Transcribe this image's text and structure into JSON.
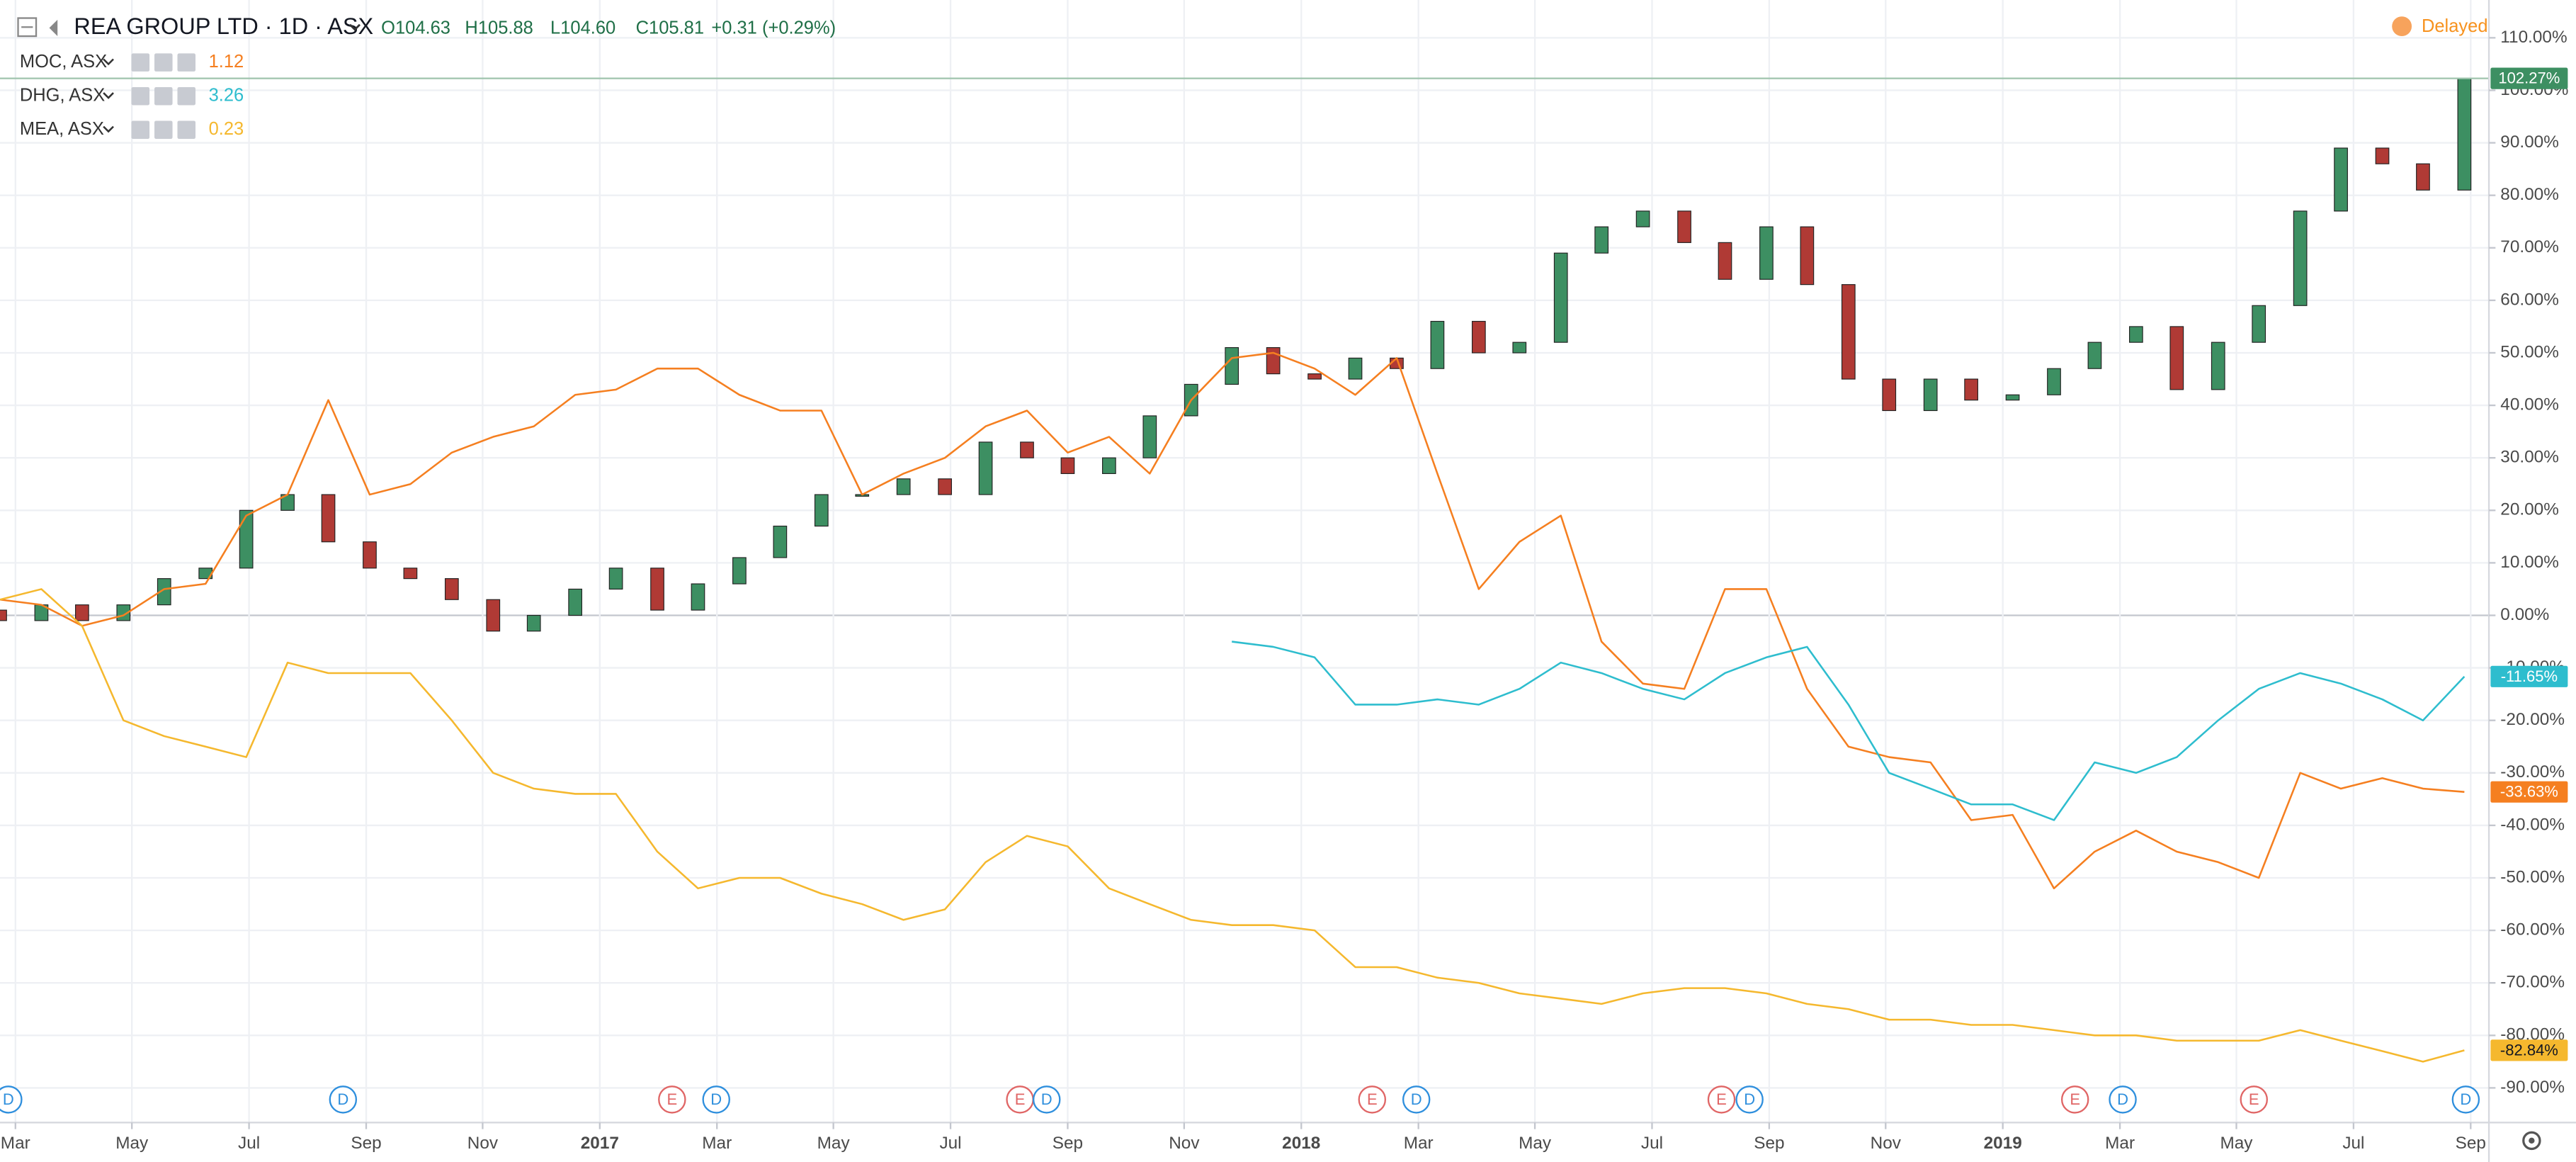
{
  "chart_data": {
    "type": "candlestick",
    "title": "REA GROUP LTD · 1D · ASX",
    "ohlc": [
      "O104.63",
      "H105.88",
      "L104.60",
      "C105.81"
    ],
    "change": "+0.31 (+0.29%)",
    "status": "Delayed",
    "grid": true,
    "xlim": [
      2016.145,
      2019.693
    ],
    "xticks": [
      {
        "value": 2016.167,
        "label": "Mar"
      },
      {
        "value": 2016.333,
        "label": "May"
      },
      {
        "value": 2016.5,
        "label": "Jul"
      },
      {
        "value": 2016.667,
        "label": "Sep"
      },
      {
        "value": 2016.833,
        "label": "Nov"
      },
      {
        "value": 2017.0,
        "label": "2017"
      },
      {
        "value": 2017.167,
        "label": "Mar"
      },
      {
        "value": 2017.333,
        "label": "May"
      },
      {
        "value": 2017.5,
        "label": "Jul"
      },
      {
        "value": 2017.667,
        "label": "Sep"
      },
      {
        "value": 2017.833,
        "label": "Nov"
      },
      {
        "value": 2018.0,
        "label": "2018"
      },
      {
        "value": 2018.167,
        "label": "Mar"
      },
      {
        "value": 2018.333,
        "label": "May"
      },
      {
        "value": 2018.5,
        "label": "Jul"
      },
      {
        "value": 2018.667,
        "label": "Sep"
      },
      {
        "value": 2018.833,
        "label": "Nov"
      },
      {
        "value": 2019.0,
        "label": "2019"
      },
      {
        "value": 2019.167,
        "label": "Mar"
      },
      {
        "value": 2019.333,
        "label": "May"
      },
      {
        "value": 2019.5,
        "label": "Jul"
      },
      {
        "value": 2019.667,
        "label": "Sep"
      }
    ],
    "ylim": [
      -96.6,
      117.2
    ],
    "yticks": [
      {
        "value": 110,
        "label": "110.00%"
      },
      {
        "value": 100,
        "label": "100.00%"
      },
      {
        "value": 90,
        "label": "90.00%"
      },
      {
        "value": 80,
        "label": "80.00%"
      },
      {
        "value": 70,
        "label": "70.00%"
      },
      {
        "value": 60,
        "label": "60.00%"
      },
      {
        "value": 50,
        "label": "50.00%"
      },
      {
        "value": 40,
        "label": "40.00%"
      },
      {
        "value": 30,
        "label": "30.00%"
      },
      {
        "value": 20,
        "label": "20.00%"
      },
      {
        "value": 10,
        "label": "10.00%"
      },
      {
        "value": 0,
        "label": "0.00%"
      },
      {
        "value": -10,
        "label": "-10.00%"
      },
      {
        "value": -20,
        "label": "-20.00%"
      },
      {
        "value": -30,
        "label": "-30.00%"
      },
      {
        "value": -40,
        "label": "-40.00%"
      },
      {
        "value": -50,
        "label": "-50.00%"
      },
      {
        "value": -60,
        "label": "-60.00%"
      },
      {
        "value": -70,
        "label": "-70.00%"
      },
      {
        "value": -80,
        "label": "-80.00%"
      },
      {
        "value": -90,
        "label": "-90.00%"
      }
    ],
    "x": [
      2016.145,
      2016.204,
      2016.262,
      2016.321,
      2016.379,
      2016.438,
      2016.496,
      2016.555,
      2016.613,
      2016.672,
      2016.73,
      2016.789,
      2016.848,
      2016.906,
      2016.965,
      2017.023,
      2017.082,
      2017.14,
      2017.199,
      2017.257,
      2017.316,
      2017.374,
      2017.433,
      2017.492,
      2017.55,
      2017.609,
      2017.667,
      2017.726,
      2017.784,
      2017.843,
      2017.901,
      2017.96,
      2018.019,
      2018.077,
      2018.136,
      2018.194,
      2018.253,
      2018.311,
      2018.37,
      2018.428,
      2018.487,
      2018.546,
      2018.604,
      2018.663,
      2018.721,
      2018.78,
      2018.838,
      2018.897,
      2018.955,
      2019.014,
      2019.073,
      2019.131,
      2019.19,
      2019.248,
      2019.307,
      2019.365,
      2019.424,
      2019.482,
      2019.541,
      2019.599,
      2019.658
    ],
    "series": [
      {
        "type": "candlestick",
        "up_color": "#3d8f62",
        "down_color": "#b03a35",
        "open": [
          1,
          -1,
          2,
          -1,
          2,
          7,
          9,
          20,
          23,
          14,
          9,
          7,
          3,
          -3,
          0,
          5,
          9,
          1,
          6,
          11,
          17,
          23,
          23,
          26,
          23,
          33,
          30,
          27,
          30,
          38,
          44,
          51,
          46,
          45,
          49,
          47,
          56,
          50,
          52,
          69,
          74,
          77,
          71,
          64,
          74,
          63,
          45,
          39,
          45,
          41,
          42,
          47,
          52,
          55,
          43,
          52,
          59,
          77,
          89,
          86,
          81
        ],
        "values": [
          -1,
          2,
          -1,
          2,
          7,
          9,
          20,
          23,
          14,
          9,
          7,
          3,
          -3,
          0,
          5,
          9,
          1,
          6,
          11,
          17,
          23,
          23,
          26,
          23,
          33,
          30,
          27,
          30,
          38,
          44,
          51,
          46,
          45,
          49,
          47,
          56,
          50,
          52,
          69,
          74,
          77,
          71,
          64,
          74,
          63,
          45,
          39,
          45,
          41,
          42,
          47,
          52,
          55,
          43,
          52,
          59,
          77,
          89,
          86,
          81,
          102.27
        ],
        "last_value_label": {
          "value": 102.27,
          "label": "102.27%"
        }
      },
      {
        "type": "line",
        "name": "MOC, ASX",
        "price": 1.12,
        "color": "#f57f20",
        "values": [
          3,
          2,
          -2,
          0,
          5,
          6,
          19,
          23,
          41,
          23,
          25,
          31,
          34,
          36,
          42,
          43,
          47,
          47,
          42,
          39,
          39,
          23,
          27,
          30,
          36,
          39,
          31,
          34,
          27,
          41,
          49,
          50,
          47,
          42,
          49,
          27,
          5,
          14,
          19,
          -5,
          -13,
          -14,
          5,
          5,
          -14,
          -25,
          -27,
          -28,
          -39,
          -38,
          -52,
          -45,
          -41,
          -45,
          -47,
          -50,
          -30,
          -33,
          -31,
          -33,
          -33.63
        ],
        "last_value_label": {
          "value": -33.63,
          "label": "-33.63%"
        }
      },
      {
        "type": "line",
        "name": "DHG, ASX",
        "price": 3.26,
        "color": "#2ebdce",
        "values": [
          null,
          null,
          null,
          null,
          null,
          null,
          null,
          null,
          null,
          null,
          null,
          null,
          null,
          null,
          null,
          null,
          null,
          null,
          null,
          null,
          null,
          null,
          null,
          null,
          null,
          null,
          null,
          null,
          null,
          null,
          -5,
          -6,
          -8,
          -17,
          -17,
          -16,
          -17,
          -14,
          -9,
          -11,
          -14,
          -16,
          -11,
          -8,
          -6,
          -17,
          -30,
          -33,
          -36,
          -36,
          -39,
          -28,
          -30,
          -27,
          -20,
          -14,
          -11,
          -13,
          -16,
          -20,
          -11.65
        ],
        "last_value_label": {
          "value": -11.65,
          "label": "-11.65%"
        }
      },
      {
        "type": "line",
        "name": "MEA, ASX",
        "price": 0.23,
        "color": "#f5b82e",
        "values": [
          3,
          5,
          -2,
          -20,
          -23,
          -25,
          -27,
          -9,
          -11,
          -11,
          -11,
          -20,
          -30,
          -33,
          -34,
          -34,
          -45,
          -52,
          -50,
          -50,
          -53,
          -55,
          -58,
          -56,
          -47,
          -42,
          -44,
          -52,
          -55,
          -58,
          -59,
          -59,
          -60,
          -67,
          -67,
          -69,
          -70,
          -72,
          -73,
          -74,
          -72,
          -71,
          -71,
          -72,
          -74,
          -75,
          -77,
          -77,
          -78,
          -78,
          -79,
          -80,
          -80,
          -81,
          -81,
          -81,
          -79,
          -81,
          -83,
          -85,
          -82.84
        ],
        "last_value_label": {
          "value": -82.84,
          "label": "-82.84%"
        }
      }
    ],
    "event_colors": {
      "D": "#2f8fdd",
      "E": "#e06666"
    },
    "events": [
      {
        "x": 2016.157,
        "label": "D"
      },
      {
        "x": 2016.634,
        "label": "D"
      },
      {
        "x": 2017.103,
        "label": "E"
      },
      {
        "x": 2017.166,
        "label": "D"
      },
      {
        "x": 2017.599,
        "label": "E"
      },
      {
        "x": 2017.637,
        "label": "D"
      },
      {
        "x": 2018.101,
        "label": "E"
      },
      {
        "x": 2018.164,
        "label": "D"
      },
      {
        "x": 2018.599,
        "label": "E"
      },
      {
        "x": 2018.639,
        "label": "D"
      },
      {
        "x": 2019.103,
        "label": "E"
      },
      {
        "x": 2019.171,
        "label": "D"
      },
      {
        "x": 2019.358,
        "label": "E"
      },
      {
        "x": 2019.66,
        "label": "D"
      }
    ]
  }
}
